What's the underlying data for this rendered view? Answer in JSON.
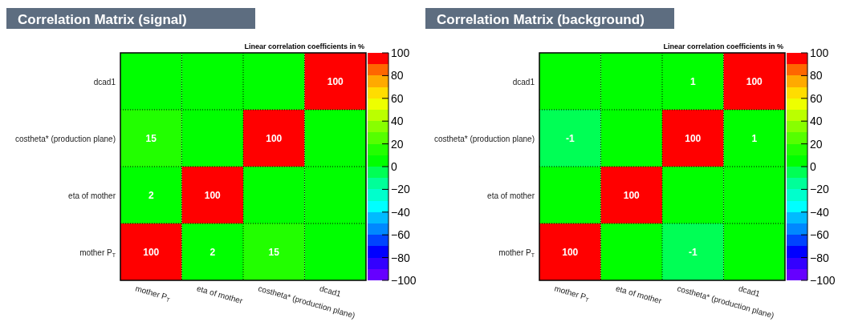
{
  "chart_data": [
    {
      "type": "heatmap",
      "title": "Correlation Matrix (signal)",
      "subtitle": "Linear correlation coefficients in %",
      "categories": [
        "mother P$_{T}$",
        "eta of mother",
        "costheta* (production plane)",
        "dcad1"
      ],
      "y_categories": [
        "dcad1",
        "costheta* (production plane)",
        "eta of mother",
        "mother P$_{T}$"
      ],
      "cells": [
        [
          0,
          0,
          0,
          100
        ],
        [
          15,
          0,
          100,
          0
        ],
        [
          2,
          100,
          0,
          0
        ],
        [
          100,
          2,
          15,
          0
        ]
      ],
      "cell_labels": [
        [
          null,
          null,
          null,
          "100"
        ],
        [
          "15",
          null,
          "100",
          null
        ],
        [
          "2",
          "100",
          null,
          null
        ],
        [
          "100",
          "2",
          "15",
          null
        ]
      ],
      "clim": [
        -100,
        100
      ],
      "cticks": [
        100,
        80,
        60,
        40,
        20,
        0,
        {
          "value": -20,
          "label": "−20"
        },
        {
          "value": -40,
          "label": "−40"
        },
        {
          "value": -60,
          "label": "−60"
        },
        {
          "value": -80,
          "label": "−80"
        },
        {
          "value": -100,
          "label": "−100"
        }
      ],
      "grid": true
    },
    {
      "type": "heatmap",
      "title": "Correlation Matrix (background)",
      "subtitle": "Linear correlation coefficients in %",
      "categories": [
        "mother P$_{T}$",
        "eta of mother",
        "costheta* (production plane)",
        "dcad1"
      ],
      "y_categories": [
        "dcad1",
        "costheta* (production plane)",
        "eta of mother",
        "mother P$_{T}$"
      ],
      "cells": [
        [
          0,
          0,
          1,
          100
        ],
        [
          -1,
          0,
          100,
          1
        ],
        [
          0,
          100,
          0,
          0
        ],
        [
          100,
          0,
          -1,
          0
        ]
      ],
      "cell_labels": [
        [
          null,
          null,
          "1",
          "100"
        ],
        [
          "-1",
          null,
          "100",
          "1"
        ],
        [
          null,
          "100",
          null,
          null
        ],
        [
          "100",
          null,
          "-1",
          null
        ]
      ],
      "clim": [
        -100,
        100
      ],
      "cticks": [
        100,
        80,
        60,
        40,
        20,
        0,
        {
          "value": -20,
          "label": "−20"
        },
        {
          "value": -40,
          "label": "−40"
        },
        {
          "value": -60,
          "label": "−60"
        },
        {
          "value": -80,
          "label": "−80"
        },
        {
          "value": -100,
          "label": "−100"
        }
      ],
      "grid": true
    }
  ]
}
